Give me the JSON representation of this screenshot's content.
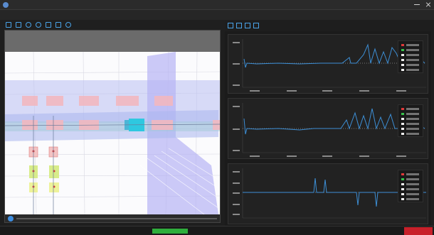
{
  "window": {
    "title": ""
  },
  "menu": {
    "items": [
      "",
      "",
      "",
      "",
      "",
      ""
    ]
  },
  "toolbar": {
    "icons": [
      "open-icon",
      "save-icon",
      "zoom-in-icon",
      "zoom-out-icon",
      "fit-icon",
      "layers-icon",
      "settings-icon"
    ]
  },
  "viewer": {
    "info_lines": [
      "",
      "",
      ""
    ]
  },
  "plots": {
    "header_icons": [
      "add-plot-icon",
      "remove-plot-icon",
      "link-axes-icon",
      "export-icon"
    ],
    "header_right": ""
  },
  "statusbar": {
    "fields": [
      "",
      "",
      "",
      "",
      "",
      "",
      ""
    ],
    "green_field": "",
    "red_button": ""
  },
  "colors": {
    "accent": "#4aa3e8",
    "trace": "#3d8fd6",
    "ok": "#2fae3c",
    "alert": "#c8202a",
    "legend": [
      "#e03a3a",
      "#37c24a",
      "#f0f0f0",
      "#f0f0f0",
      "#f0f0f0",
      "#f0f0f0"
    ]
  }
}
